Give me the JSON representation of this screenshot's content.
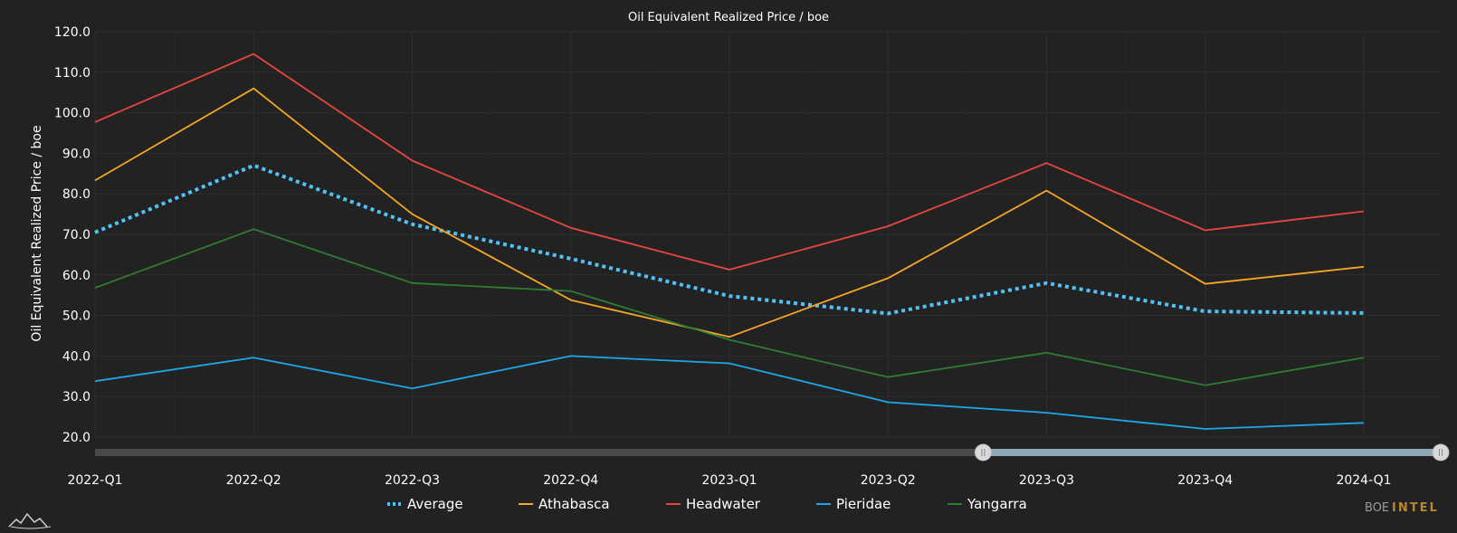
{
  "chart_data": {
    "type": "line",
    "title": "Oil Equivalent Realized Price / boe",
    "xlabel": "",
    "ylabel": "Oil Equivalent Realized Price / boe",
    "ylim": [
      20,
      120
    ],
    "yticks": [
      "20.0",
      "30.0",
      "40.0",
      "50.0",
      "60.0",
      "70.0",
      "80.0",
      "90.0",
      "100.0",
      "110.0",
      "120.0"
    ],
    "categories": [
      "2022-Q1",
      "2022-Q2",
      "2022-Q3",
      "2022-Q4",
      "2023-Q1",
      "2023-Q2",
      "2023-Q3",
      "2023-Q4",
      "2024-Q1"
    ],
    "grid": true,
    "legend_position": "bottom",
    "series": [
      {
        "name": "Average",
        "color": "#4fc3f7",
        "style": "dotted",
        "values": [
          70.5,
          87.0,
          72.5,
          64.0,
          54.8,
          50.5,
          58.0,
          51.0,
          50.6
        ]
      },
      {
        "name": "Athabasca",
        "color": "#f5a623",
        "style": "solid",
        "values": [
          83.3,
          106.0,
          75.0,
          53.8,
          44.7,
          59.2,
          80.8,
          57.8,
          62.0
        ]
      },
      {
        "name": "Headwater",
        "color": "#e8473f",
        "style": "solid",
        "values": [
          97.7,
          114.5,
          88.2,
          71.6,
          61.3,
          72.0,
          87.6,
          71.0,
          75.7
        ]
      },
      {
        "name": "Pieridae",
        "color": "#1ea7e8",
        "style": "solid",
        "values": [
          33.8,
          39.6,
          32.0,
          40.0,
          38.2,
          28.6,
          26.0,
          22.0,
          23.5
        ]
      },
      {
        "name": "Yangarra",
        "color": "#2e7d32",
        "style": "solid",
        "values": [
          56.8,
          71.3,
          58.0,
          56.0,
          44.0,
          34.8,
          40.8,
          32.8,
          39.6
        ]
      }
    ],
    "range_selector": {
      "start_fraction": 0.66,
      "end_fraction": 1.0
    },
    "brand": {
      "part1": "BOE",
      "part2": "INTEL"
    }
  }
}
